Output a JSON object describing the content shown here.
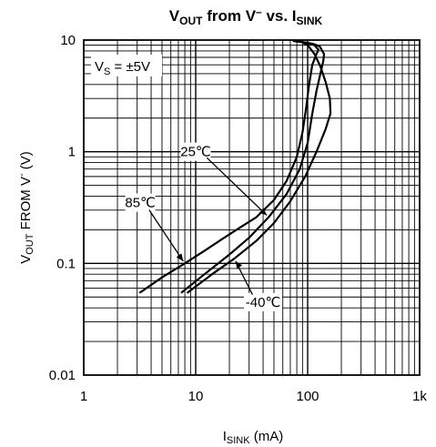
{
  "chart_data": {
    "type": "line",
    "title": "VOUT from V⁻ vs. ISINK",
    "title_parts": [
      "V",
      "OUT",
      " from V",
      "–",
      " vs. I",
      "SINK"
    ],
    "xlabel": "ISINK (mA)",
    "xlabel_parts": [
      "I",
      "SINK",
      " (mA)"
    ],
    "ylabel": "VOUT FROM V- (V)",
    "ylabel_parts": [
      "V",
      "OUT",
      " FROM V",
      "-",
      " (V)"
    ],
    "x_scale": "log",
    "y_scale": "log",
    "xlim": [
      1,
      1000
    ],
    "ylim": [
      0.01,
      10
    ],
    "x_ticks": [
      {
        "value": 1,
        "label": "1"
      },
      {
        "value": 10,
        "label": "10"
      },
      {
        "value": 100,
        "label": "100"
      },
      {
        "value": 1000,
        "label": "1k"
      }
    ],
    "y_ticks": [
      {
        "value": 0.01,
        "label": "0.01"
      },
      {
        "value": 0.1,
        "label": "0.1"
      },
      {
        "value": 1,
        "label": "1"
      },
      {
        "value": 10,
        "label": "10"
      }
    ],
    "grid": true,
    "annotations": {
      "supply": "VS = ±5V",
      "supply_parts": [
        "V",
        "S",
        " = ±5V"
      ]
    },
    "series": [
      {
        "name": "85°C",
        "label_text": "85℃",
        "points": [
          [
            3.2,
            0.055
          ],
          [
            5,
            0.075
          ],
          [
            8,
            0.1
          ],
          [
            12,
            0.13
          ],
          [
            18,
            0.17
          ],
          [
            25,
            0.21
          ],
          [
            35,
            0.26
          ],
          [
            50,
            0.37
          ],
          [
            65,
            0.55
          ],
          [
            80,
            0.9
          ],
          [
            90,
            1.5
          ],
          [
            97,
            2.5
          ],
          [
            103,
            4
          ],
          [
            110,
            6
          ],
          [
            120,
            7.5
          ],
          [
            125,
            8.2
          ],
          [
            115,
            9
          ],
          [
            95,
            9.5
          ],
          [
            75,
            9.8
          ]
        ]
      },
      {
        "name": "25°C",
        "label_text": "25℃",
        "points": [
          [
            7.5,
            0.055
          ],
          [
            12,
            0.08
          ],
          [
            20,
            0.12
          ],
          [
            30,
            0.17
          ],
          [
            45,
            0.26
          ],
          [
            65,
            0.42
          ],
          [
            85,
            0.7
          ],
          [
            100,
            1.2
          ],
          [
            110,
            2.2
          ],
          [
            120,
            3.5
          ],
          [
            130,
            5
          ],
          [
            138,
            6.5
          ],
          [
            140,
            7.5
          ],
          [
            128,
            8.8
          ],
          [
            110,
            9.3
          ],
          [
            90,
            9.6
          ],
          [
            78,
            9.8
          ]
        ]
      },
      {
        "name": "-40°C",
        "label_text": "-40℃",
        "points": [
          [
            8.5,
            0.055
          ],
          [
            14,
            0.08
          ],
          [
            22,
            0.11
          ],
          [
            35,
            0.16
          ],
          [
            50,
            0.23
          ],
          [
            70,
            0.36
          ],
          [
            95,
            0.6
          ],
          [
            120,
            1.0
          ],
          [
            145,
            1.6
          ],
          [
            160,
            2.2
          ],
          [
            158,
            3.0
          ],
          [
            145,
            4.2
          ],
          [
            130,
            5.8
          ],
          [
            115,
            7.5
          ],
          [
            100,
            9
          ],
          [
            85,
            9.8
          ]
        ]
      }
    ],
    "series_labels": [
      {
        "series": "25°C",
        "text_x": 10,
        "text_y": 1.0
      },
      {
        "series": "85°C",
        "text_x": 3.2,
        "text_y": 0.35
      },
      {
        "series": "-40°C",
        "text_x": 40,
        "text_y": 0.045
      }
    ]
  }
}
